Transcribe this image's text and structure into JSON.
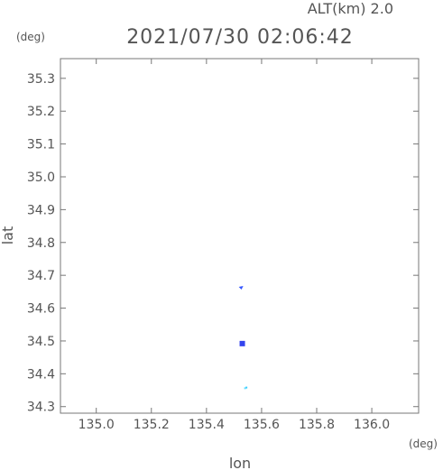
{
  "altitude_label": "ALT(km) 2.0",
  "timestamp": "2021/07/30 02:06:42",
  "chart_data": {
    "type": "scatter",
    "xlabel": "lon",
    "ylabel": "lat",
    "x_unit": "(deg)",
    "y_unit": "(deg)",
    "xlim": [
      134.87,
      136.17
    ],
    "ylim": [
      34.28,
      35.36
    ],
    "x_ticks": [
      135.0,
      135.2,
      135.4,
      135.6,
      135.8,
      136.0
    ],
    "x_tick_labels": [
      "135.0",
      "135.2",
      "135.4",
      "135.6",
      "135.8",
      "136.0"
    ],
    "y_ticks": [
      34.3,
      34.4,
      34.5,
      34.6,
      34.7,
      34.8,
      34.9,
      35.0,
      35.1,
      35.2,
      35.3
    ],
    "y_tick_labels": [
      "34.3",
      "34.4",
      "34.5",
      "34.6",
      "34.7",
      "34.8",
      "34.9",
      "35.0",
      "35.1",
      "35.2",
      "35.3"
    ],
    "grid": false,
    "points": [
      {
        "x": 135.527,
        "y": 34.662,
        "color": "#3355ff",
        "marker": "triangle-small"
      },
      {
        "x": 135.53,
        "y": 34.492,
        "color": "#3344ee",
        "marker": "square"
      },
      {
        "x": 135.545,
        "y": 34.358,
        "color": "#33ccff",
        "marker": "dot"
      },
      {
        "x": 135.54,
        "y": 34.356,
        "color": "#66ddff",
        "marker": "dot"
      }
    ]
  }
}
